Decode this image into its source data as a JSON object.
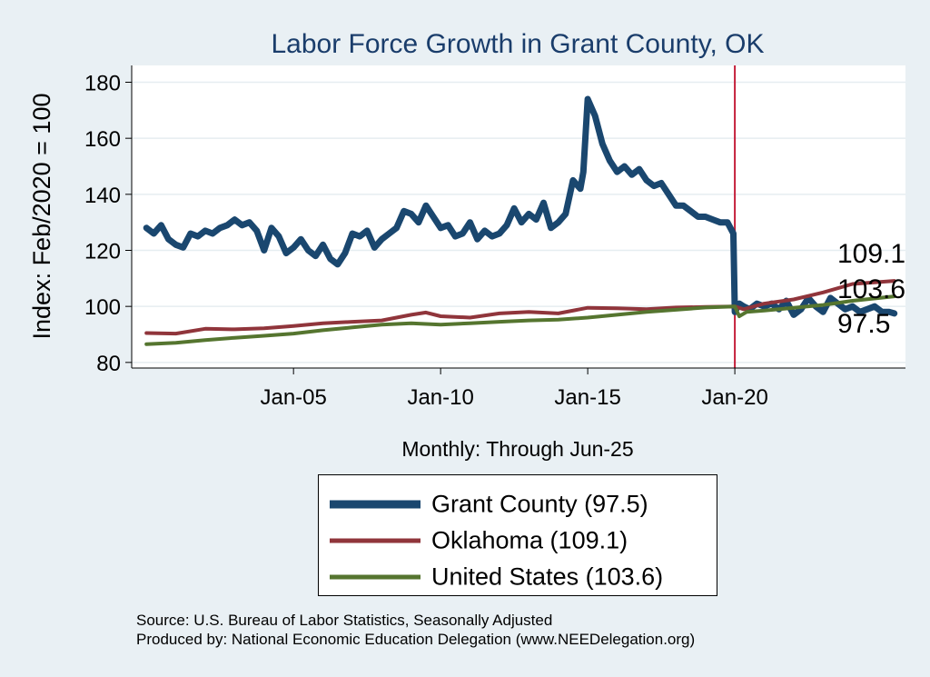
{
  "chart_data": {
    "type": "line",
    "title": "Labor Force Growth in Grant  County, OK",
    "xlabel": "Monthly: Through Jun-25",
    "ylabel": "Index: Feb/2020 = 100",
    "ylim": [
      78,
      186
    ],
    "xlim": [
      1999.5,
      2025.8
    ],
    "yticks": [
      80,
      100,
      120,
      140,
      160,
      180
    ],
    "xticks": [
      {
        "x": 2005.0,
        "label": "Jan-05"
      },
      {
        "x": 2010.0,
        "label": "Jan-10"
      },
      {
        "x": 2015.0,
        "label": "Jan-15"
      },
      {
        "x": 2020.0,
        "label": "Jan-20"
      }
    ],
    "reference_line": {
      "x": 2020.0,
      "color": "#c41e3a"
    },
    "grid": true,
    "end_labels": [
      "109.1",
      "103.6",
      "97.5"
    ],
    "series": [
      {
        "name": "Grant  County",
        "legend": "Grant  County (97.5)",
        "color": "#1a476f",
        "x": [
          2000.0,
          2000.25,
          2000.5,
          2000.75,
          2001.0,
          2001.25,
          2001.5,
          2001.75,
          2002.0,
          2002.25,
          2002.5,
          2002.75,
          2003.0,
          2003.25,
          2003.5,
          2003.75,
          2004.0,
          2004.25,
          2004.5,
          2004.75,
          2005.0,
          2005.25,
          2005.5,
          2005.75,
          2006.0,
          2006.25,
          2006.5,
          2006.75,
          2007.0,
          2007.25,
          2007.5,
          2007.75,
          2008.0,
          2008.25,
          2008.5,
          2008.75,
          2009.0,
          2009.25,
          2009.5,
          2009.75,
          2010.0,
          2010.25,
          2010.5,
          2010.75,
          2011.0,
          2011.25,
          2011.5,
          2011.75,
          2012.0,
          2012.25,
          2012.5,
          2012.75,
          2013.0,
          2013.25,
          2013.5,
          2013.75,
          2014.0,
          2014.25,
          2014.5,
          2014.75,
          2014.85,
          2015.0,
          2015.25,
          2015.5,
          2015.75,
          2016.0,
          2016.25,
          2016.5,
          2016.75,
          2017.0,
          2017.25,
          2017.5,
          2017.75,
          2018.0,
          2018.25,
          2018.5,
          2018.75,
          2019.0,
          2019.25,
          2019.5,
          2019.75,
          2019.95,
          2020.0,
          2020.15,
          2020.3,
          2020.5,
          2020.75,
          2021.0,
          2021.25,
          2021.5,
          2021.75,
          2022.0,
          2022.25,
          2022.5,
          2022.75,
          2023.0,
          2023.25,
          2023.5,
          2023.75,
          2024.0,
          2024.25,
          2024.5,
          2024.75,
          2025.0,
          2025.25,
          2025.42
        ],
        "values": [
          128,
          126,
          129,
          124,
          122,
          121,
          126,
          125,
          127,
          126,
          128,
          129,
          131,
          129,
          130,
          127,
          120,
          128,
          125,
          119,
          121,
          124,
          120,
          118,
          122,
          117,
          115,
          119,
          126,
          125,
          127,
          121,
          124,
          126,
          128,
          134,
          133,
          130,
          136,
          132,
          128,
          129,
          125,
          126,
          130,
          124,
          127,
          125,
          126,
          129,
          135,
          130,
          133,
          131,
          137,
          128,
          130,
          133,
          145,
          142,
          148,
          174,
          168,
          158,
          152,
          148,
          150,
          147,
          149,
          145,
          143,
          144,
          140,
          136,
          136,
          134,
          132,
          132,
          131,
          130,
          130,
          126,
          98,
          101,
          100,
          99,
          101,
          100,
          101,
          99,
          102,
          97,
          99,
          103,
          100,
          98,
          103,
          101,
          99,
          100,
          98,
          99,
          100,
          98,
          98,
          97.5
        ]
      },
      {
        "name": "Oklahoma",
        "legend": "Oklahoma (109.1)",
        "color": "#90353b",
        "x": [
          2000.0,
          2001.0,
          2002.0,
          2003.0,
          2004.0,
          2005.0,
          2006.0,
          2007.0,
          2008.0,
          2009.0,
          2009.5,
          2010.0,
          2011.0,
          2012.0,
          2013.0,
          2014.0,
          2015.0,
          2016.0,
          2017.0,
          2018.0,
          2019.0,
          2020.0,
          2020.3,
          2021.0,
          2022.0,
          2023.0,
          2024.0,
          2025.42
        ],
        "values": [
          90.5,
          90.3,
          92,
          91.8,
          92.2,
          93,
          94,
          94.5,
          95,
          97,
          97.8,
          96.5,
          96,
          97.5,
          98,
          97.5,
          99.5,
          99.3,
          99,
          99.6,
          99.8,
          100,
          99,
          101,
          102.5,
          105,
          108,
          109.1
        ]
      },
      {
        "name": "United States",
        "legend": "United States (103.6)",
        "color": "#55752f",
        "x": [
          2000.0,
          2001.0,
          2002.0,
          2003.0,
          2004.0,
          2005.0,
          2006.0,
          2007.0,
          2008.0,
          2009.0,
          2010.0,
          2011.0,
          2012.0,
          2013.0,
          2014.0,
          2015.0,
          2016.0,
          2017.0,
          2018.0,
          2019.0,
          2020.0,
          2020.15,
          2020.4,
          2021.0,
          2022.0,
          2023.0,
          2024.0,
          2025.42
        ],
        "values": [
          86.5,
          87,
          88,
          88.8,
          89.5,
          90.3,
          91.5,
          92.5,
          93.5,
          94,
          93.5,
          94,
          94.5,
          95,
          95.3,
          96,
          97,
          98,
          98.8,
          99.6,
          100,
          96.5,
          98,
          98.5,
          99.5,
          100.5,
          102,
          103.6
        ]
      }
    ]
  },
  "source_lines": [
    "Source: U.S. Bureau of Labor Statistics, Seasonally Adjusted",
    "Produced by: National Economic Education Delegation (www.NEEDelegation.org)"
  ]
}
